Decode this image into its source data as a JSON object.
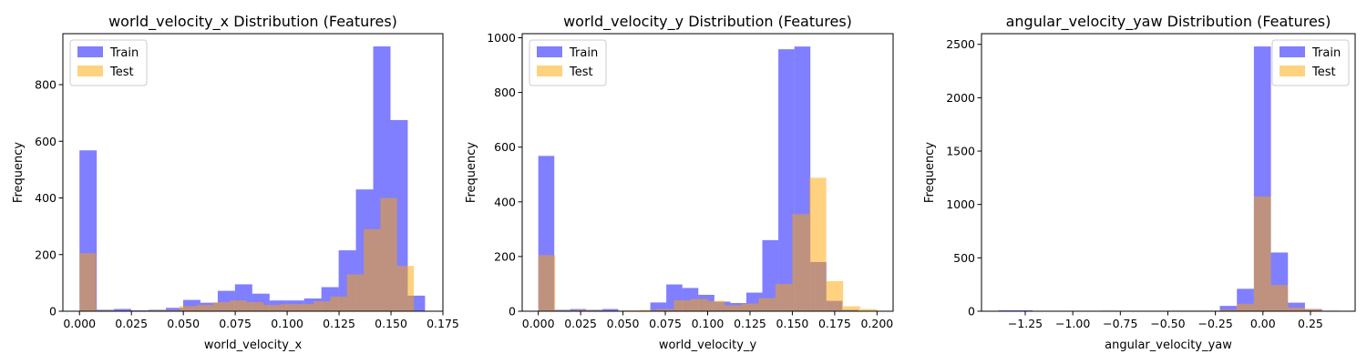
{
  "colors": {
    "train": "#0000ff",
    "test": "#ffa500",
    "bar_opacity": 0.5,
    "axes": "#000000",
    "legend_border": "#cccccc"
  },
  "chart_data": [
    {
      "type": "bar",
      "title": "world_velocity_x Distribution (Features)",
      "xlabel": "world_velocity_x",
      "ylabel": "Frequency",
      "xlim": [
        -0.008,
        0.175
      ],
      "ylim": [
        0,
        980
      ],
      "xticks": [
        0.0,
        0.025,
        0.05,
        0.075,
        0.1,
        0.125,
        0.15,
        0.175
      ],
      "xtick_labels": [
        "0.000",
        "0.025",
        "0.050",
        "0.075",
        "0.100",
        "0.125",
        "0.150",
        "0.175"
      ],
      "yticks": [
        0,
        200,
        400,
        600,
        800
      ],
      "ytick_labels": [
        "0",
        "200",
        "400",
        "600",
        "800"
      ],
      "grid": false,
      "legend_position": "top-left",
      "series": [
        {
          "name": "Train",
          "color": "#0000ff",
          "bin_edges": [
            0.0,
            0.00832,
            0.01664,
            0.02496,
            0.03328,
            0.0416,
            0.04992,
            0.05824,
            0.06656,
            0.07488,
            0.0832,
            0.09152,
            0.09984,
            0.10816,
            0.11648,
            0.1248,
            0.13312,
            0.14144,
            0.14976,
            0.15808,
            0.1664
          ],
          "values": [
            568,
            5,
            8,
            3,
            5,
            12,
            40,
            30,
            72,
            95,
            62,
            38,
            38,
            45,
            85,
            215,
            430,
            935,
            675,
            55
          ]
        },
        {
          "name": "Test",
          "color": "#ffa500",
          "bin_edges": [
            0.0,
            0.00805,
            0.0161,
            0.02415,
            0.0322,
            0.04025,
            0.0483,
            0.05635,
            0.0644,
            0.07245,
            0.0805,
            0.08855,
            0.0966,
            0.10465,
            0.1127,
            0.12075,
            0.1288,
            0.13685,
            0.1449,
            0.15295,
            0.161
          ],
          "values": [
            205,
            3,
            2,
            2,
            3,
            4,
            18,
            22,
            32,
            38,
            32,
            22,
            25,
            25,
            35,
            52,
            130,
            290,
            400,
            160
          ]
        }
      ]
    },
    {
      "type": "bar",
      "title": "world_velocity_y Distribution (Features)",
      "xlabel": "world_velocity_y",
      "ylabel": "Frequency",
      "xlim": [
        -0.0095,
        0.2095
      ],
      "ylim": [
        0,
        1015
      ],
      "xticks": [
        0.0,
        0.025,
        0.05,
        0.075,
        0.1,
        0.125,
        0.15,
        0.175,
        0.2
      ],
      "xtick_labels": [
        "0.000",
        "0.025",
        "0.050",
        "0.075",
        "0.100",
        "0.125",
        "0.150",
        "0.175",
        "0.200"
      ],
      "yticks": [
        0,
        200,
        400,
        600,
        800,
        1000
      ],
      "ytick_labels": [
        "0",
        "200",
        "400",
        "600",
        "800",
        "1000"
      ],
      "grid": false,
      "legend_position": "top-left",
      "series": [
        {
          "name": "Train",
          "color": "#0000ff",
          "bin_edges": [
            0.0,
            0.00945,
            0.0189,
            0.02835,
            0.0378,
            0.04725,
            0.0567,
            0.06615,
            0.0756,
            0.08505,
            0.0945,
            0.10395,
            0.1134,
            0.12285,
            0.1323,
            0.14175,
            0.1512,
            0.16065,
            0.1701,
            0.17955,
            0.189
          ],
          "values": [
            568,
            5,
            8,
            5,
            8,
            2,
            2,
            32,
            98,
            85,
            60,
            35,
            30,
            68,
            260,
            958,
            968,
            180,
            38,
            5
          ]
        },
        {
          "name": "Test",
          "color": "#ffa500",
          "bin_edges": [
            0.0,
            0.01,
            0.02,
            0.03,
            0.04,
            0.05,
            0.06,
            0.07,
            0.08,
            0.09,
            0.1,
            0.11,
            0.12,
            0.13,
            0.14,
            0.15,
            0.16,
            0.17,
            0.18,
            0.19,
            0.2
          ],
          "values": [
            205,
            3,
            5,
            3,
            2,
            3,
            5,
            8,
            40,
            45,
            38,
            22,
            28,
            48,
            100,
            355,
            488,
            110,
            18,
            8
          ]
        }
      ]
    },
    {
      "type": "bar",
      "title": "angular_velocity_yaw Distribution (Features)",
      "xlabel": "angular_velocity_yaw",
      "ylabel": "Frequency",
      "xlim": [
        -1.48,
        0.485
      ],
      "ylim": [
        0,
        2600
      ],
      "xticks": [
        -1.25,
        -1.0,
        -0.75,
        -0.5,
        -0.25,
        0.0,
        0.25
      ],
      "xtick_labels": [
        "−1.25",
        "−1.00",
        "−0.75",
        "−0.50",
        "−0.25",
        "0.00",
        "0.25"
      ],
      "yticks": [
        0,
        500,
        1000,
        1500,
        2000,
        2500
      ],
      "ytick_labels": [
        "0",
        "500",
        "1000",
        "1500",
        "2000",
        "2500"
      ],
      "grid": false,
      "legend_position": "top-right",
      "series": [
        {
          "name": "Train",
          "color": "#0000ff",
          "bin_edges": [
            -1.39,
            -1.3005,
            -1.211,
            -1.1215,
            -1.032,
            -0.9425,
            -0.853,
            -0.7635,
            -0.674,
            -0.5845,
            -0.495,
            -0.4055,
            -0.316,
            -0.2265,
            -0.137,
            -0.0475,
            0.042,
            0.1315,
            0.221,
            0.3105,
            0.4
          ],
          "values": [
            8,
            8,
            0,
            0,
            0,
            0,
            5,
            0,
            0,
            0,
            5,
            5,
            5,
            50,
            210,
            2480,
            550,
            80,
            20,
            5
          ]
        },
        {
          "name": "Test",
          "color": "#ffa500",
          "bin_edges": [
            -1.39,
            -1.3005,
            -1.211,
            -1.1215,
            -1.032,
            -0.9425,
            -0.853,
            -0.7635,
            -0.674,
            -0.5845,
            -0.495,
            -0.4055,
            -0.316,
            -0.2265,
            -0.137,
            -0.0475,
            0.042,
            0.1315,
            0.221,
            0.3105,
            0.4
          ],
          "values": [
            3,
            3,
            0,
            0,
            0,
            0,
            3,
            0,
            0,
            0,
            3,
            3,
            3,
            15,
            70,
            1075,
            245,
            35,
            20,
            3
          ]
        }
      ]
    }
  ]
}
